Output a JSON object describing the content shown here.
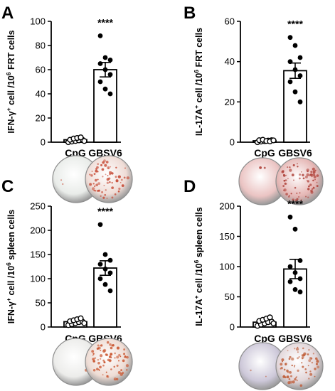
{
  "chart_data": [
    {
      "panel": "A",
      "type": "bar",
      "categories": [
        "CpG",
        "GBSV6"
      ],
      "values": [
        2,
        60
      ],
      "sem": [
        0.5,
        6
      ],
      "points": [
        [
          0,
          0.5,
          1,
          1.5,
          2,
          2,
          3,
          3.5,
          4,
          1
        ],
        [
          88,
          70,
          68,
          65,
          60,
          56,
          50,
          44,
          40
        ]
      ],
      "ylabel_parts": [
        "IFN-γ",
        "+",
        " cell /10",
        "6",
        " FRT cells"
      ],
      "ylim": [
        0,
        100
      ],
      "yticks": [
        0,
        20,
        40,
        60,
        80,
        100
      ],
      "significance": "****"
    },
    {
      "panel": "B",
      "type": "bar",
      "categories": [
        "CpG",
        "GBSV6"
      ],
      "values": [
        0.7,
        35.5
      ],
      "sem": [
        0.2,
        3.8
      ],
      "points": [
        [
          0,
          0.3,
          0.5,
          0.8,
          1,
          1,
          1.2,
          0.6,
          0.4,
          0.9
        ],
        [
          52,
          48,
          42,
          40,
          36,
          33,
          30,
          25,
          20
        ]
      ],
      "ylabel_parts": [
        "IL-17A",
        "+",
        " cell /10",
        "6",
        " FRT cells"
      ],
      "ylim": [
        0,
        60
      ],
      "yticks": [
        0,
        20,
        40,
        60
      ],
      "significance": "****"
    },
    {
      "panel": "C",
      "type": "bar",
      "categories": [
        "CpG",
        "GBSV6"
      ],
      "values": [
        11,
        122
      ],
      "sem": [
        2.5,
        15
      ],
      "points": [
        [
          4,
          6,
          8,
          10,
          11,
          12,
          14,
          16,
          18,
          8
        ],
        [
          212,
          150,
          138,
          130,
          120,
          112,
          100,
          88,
          75
        ]
      ],
      "ylabel_parts": [
        "IFN-γ",
        "+",
        " cell /10",
        "6",
        " spleen cells"
      ],
      "ylim": [
        0,
        250
      ],
      "yticks": [
        0,
        50,
        100,
        150,
        200,
        250
      ],
      "significance": "****"
    },
    {
      "panel": "D",
      "type": "bar",
      "categories": [
        "CpG",
        "GBSV6"
      ],
      "values": [
        8,
        96
      ],
      "sem": [
        2,
        16
      ],
      "points": [
        [
          2,
          4,
          6,
          8,
          9,
          10,
          12,
          14,
          16,
          6
        ],
        [
          182,
          162,
          110,
          100,
          90,
          80,
          75,
          62,
          58
        ]
      ],
      "ylabel_parts": [
        "IL-17A",
        "+",
        " cell /10",
        "6",
        " spleen cells"
      ],
      "ylim": [
        0,
        200
      ],
      "yticks": [
        0,
        50,
        100,
        150,
        200
      ],
      "significance": "****"
    }
  ],
  "wells": [
    {
      "panel": "A",
      "cpg_color": "#e9ece9",
      "gbsv6_color": "#efdcd6",
      "spot_color": "#c8503c"
    },
    {
      "panel": "B",
      "cpg_color": "#ebc4c3",
      "gbsv6_color": "#e5b6b4",
      "spot_color": "#b0443c"
    },
    {
      "panel": "C",
      "cpg_color": "#ececea",
      "gbsv6_color": "#eedcd4",
      "spot_color": "#c9542e"
    },
    {
      "panel": "D",
      "cpg_color": "#cdc8d9",
      "gbsv6_color": "#e2d6d9",
      "spot_color": "#c0603c"
    }
  ]
}
